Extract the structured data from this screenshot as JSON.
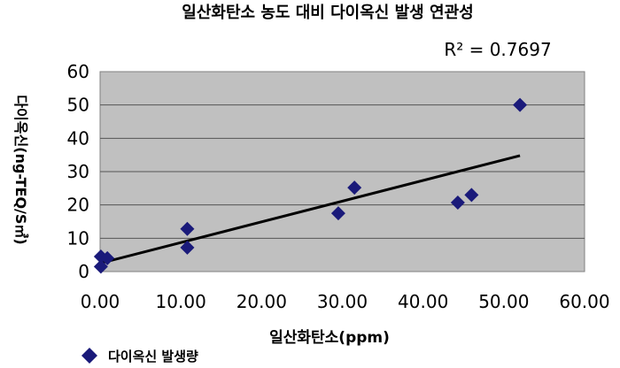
{
  "chart_data": {
    "type": "scatter",
    "title": "일산화탄소 농도 대비 다이옥신 발생 연관성",
    "xlabel": "일산화탄소(ppm)",
    "ylabel": "다이옥신(ng-TEQ/S㎥)",
    "xlim": [
      0,
      60
    ],
    "ylim": [
      0,
      60
    ],
    "x_ticks": [
      "0.00",
      "10.00",
      "20.00",
      "30.00",
      "40.00",
      "50.00",
      "60.00"
    ],
    "y_ticks": [
      "0",
      "10",
      "20",
      "30",
      "40",
      "50",
      "60"
    ],
    "grid": true,
    "legend_position": "bottom-left",
    "series": [
      {
        "name": "다이옥신 발생량",
        "color": "#1a1a7a",
        "marker": "diamond",
        "points": [
          {
            "x": 0.1,
            "y": 1.5
          },
          {
            "x": 0.1,
            "y": 4.5
          },
          {
            "x": 0.9,
            "y": 4.0
          },
          {
            "x": 10.8,
            "y": 12.8
          },
          {
            "x": 10.8,
            "y": 7.2
          },
          {
            "x": 29.5,
            "y": 17.5
          },
          {
            "x": 31.5,
            "y": 25.2
          },
          {
            "x": 44.3,
            "y": 20.7
          },
          {
            "x": 46.0,
            "y": 23.0
          },
          {
            "x": 52.0,
            "y": 50.0
          }
        ]
      }
    ],
    "trendline": {
      "type": "linear",
      "color": "#000000",
      "start": {
        "x": 0.0,
        "y": 2.5
      },
      "end": {
        "x": 52.0,
        "y": 34.8
      },
      "r_squared_label": "R² = 0.7697"
    }
  }
}
